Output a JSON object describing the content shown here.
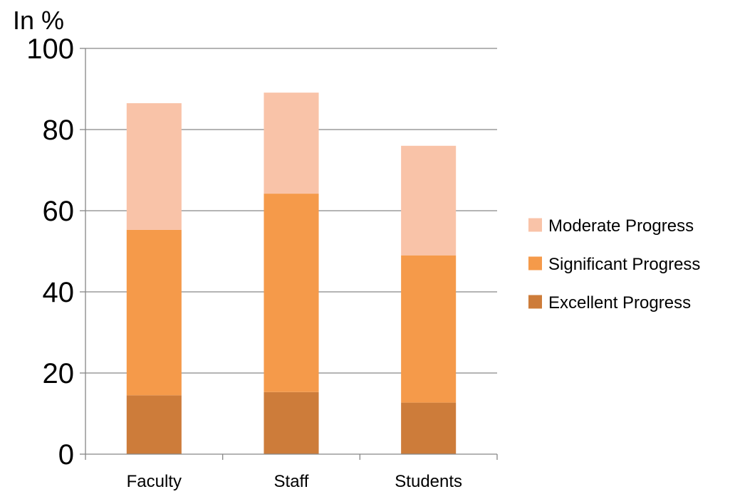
{
  "chart_data": {
    "type": "bar",
    "stacked": true,
    "title": "",
    "xlabel": "",
    "ylabel": "In %",
    "ylim": [
      0,
      100
    ],
    "yticks": [
      0,
      20,
      40,
      60,
      80,
      100
    ],
    "grid": true,
    "legend_position": "right",
    "categories": [
      "Faculty",
      "Staff",
      "Students"
    ],
    "series": [
      {
        "name": "Excellent Progress",
        "color": "#CD7C3A",
        "values": [
          14.5,
          15.3,
          12.7
        ]
      },
      {
        "name": "Significant Progress",
        "color": "#F59A4A",
        "values": [
          40.8,
          48.9,
          36.3
        ]
      },
      {
        "name": "Moderate Progress",
        "color": "#F9C3A8",
        "values": [
          31.2,
          24.9,
          27.0
        ]
      }
    ],
    "legend_order": [
      "Moderate Progress",
      "Significant Progress",
      "Excellent Progress"
    ]
  }
}
